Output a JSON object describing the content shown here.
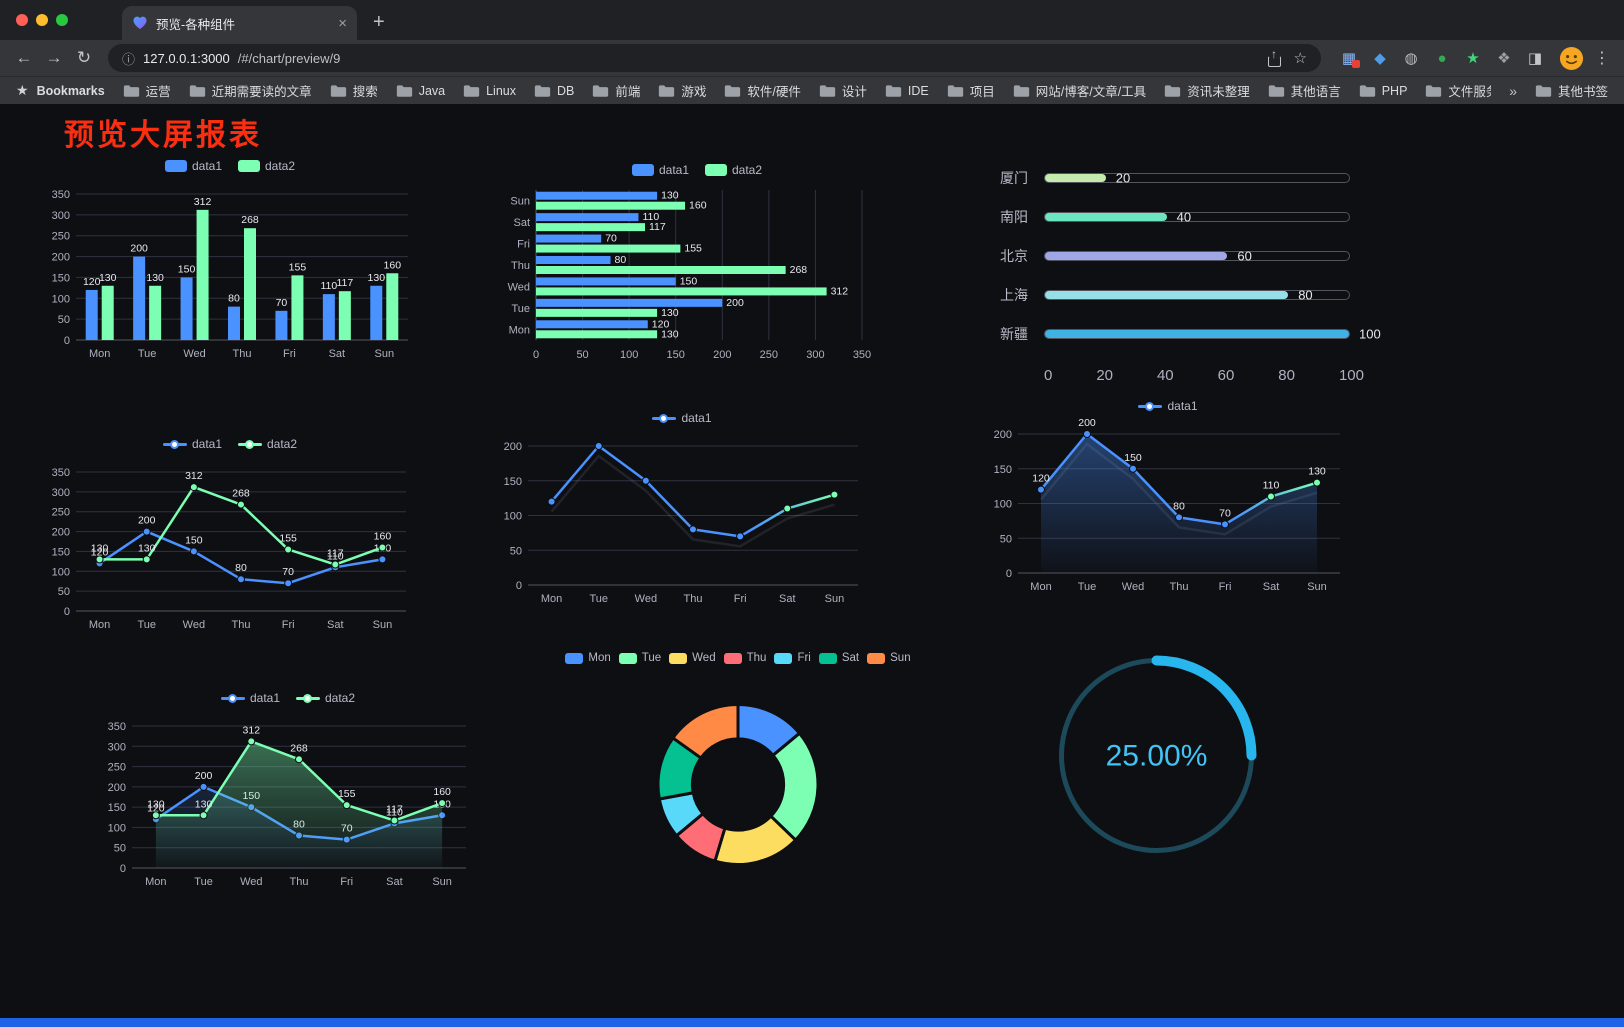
{
  "browser": {
    "tab": {
      "title": "预览-各种组件",
      "close": "×",
      "new_tab": "+"
    },
    "toolbar": {
      "url_host": "127.0.0.1:3000",
      "url_path": "/#/chart/preview/9"
    },
    "extensions": [
      {
        "name": "extension-grid-icon",
        "glyph": "▦",
        "color": "#8ab4f8",
        "badge": "#e94235"
      },
      {
        "name": "extension-pin-icon",
        "glyph": "◆",
        "color": "#4f9bea",
        "badge": ""
      },
      {
        "name": "extension-dark-circle-icon",
        "glyph": "◍",
        "color": "#b8bcc2",
        "badge": ""
      },
      {
        "name": "extension-green-circle-icon",
        "glyph": "●",
        "color": "#34a853",
        "badge": ""
      },
      {
        "name": "extension-green-star-icon",
        "glyph": "★",
        "color": "#41d57c",
        "badge": ""
      },
      {
        "name": "extension-puzzle-icon",
        "glyph": "❖",
        "color": "#9aa0a6",
        "badge": ""
      },
      {
        "name": "extension-split-square-icon",
        "glyph": "◨",
        "color": "#c2c5c9",
        "badge": ""
      }
    ],
    "bookmarks_bar": {
      "star": "★",
      "label": "Bookmarks",
      "items": [
        "运营",
        "近期需要读的文章",
        "搜索",
        "Java",
        "Linux",
        "DB",
        "前端",
        "游戏",
        "软件/硬件",
        "设计",
        "IDE",
        "项目",
        "网站/博客/文章/工具",
        "资讯未整理",
        "其他语言",
        "PHP",
        "文件服务器"
      ],
      "overflow": "»",
      "other": "其他书签"
    }
  },
  "icons": {
    "back": "←",
    "forward": "→",
    "reload": "↻",
    "info": "ⓘ",
    "share_arrow": "↑",
    "star": "☆",
    "menu": "⋮"
  },
  "page": {
    "title": "预览大屏报表"
  },
  "chart_data": [
    {
      "id": "grouped-bar",
      "type": "bar",
      "legend": true,
      "labels": true,
      "categories": [
        "Mon",
        "Tue",
        "Wed",
        "Thu",
        "Fri",
        "Sat",
        "Sun"
      ],
      "series": [
        {
          "name": "data1",
          "color": "#4992ff",
          "values": [
            120,
            200,
            150,
            80,
            70,
            110,
            130
          ]
        },
        {
          "name": "data2",
          "color": "#7cffb2",
          "values": [
            130,
            130,
            312,
            268,
            155,
            117,
            160
          ]
        }
      ],
      "ylim": [
        0,
        350
      ],
      "ytick": 50
    },
    {
      "id": "horizontal-bar",
      "type": "hbar",
      "legend": true,
      "labels": true,
      "categories": [
        "Mon",
        "Tue",
        "Wed",
        "Thu",
        "Fri",
        "Sat",
        "Sun"
      ],
      "series": [
        {
          "name": "data1",
          "color": "#4992ff",
          "values": [
            120,
            200,
            150,
            80,
            70,
            110,
            130
          ]
        },
        {
          "name": "data2",
          "color": "#7cffb2",
          "values": [
            130,
            130,
            312,
            268,
            155,
            117,
            160
          ]
        }
      ],
      "xlim": [
        0,
        350
      ],
      "xtick": 50
    },
    {
      "id": "city-progress",
      "type": "progress",
      "rows": [
        {
          "label": "厦门",
          "value": 20,
          "color": "#c4ebad"
        },
        {
          "label": "南阳",
          "value": 40,
          "color": "#6be6c1"
        },
        {
          "label": "北京",
          "value": 60,
          "color": "#a0a7e6"
        },
        {
          "label": "上海",
          "value": 80,
          "color": "#96dee8"
        },
        {
          "label": "新疆",
          "value": 100,
          "color": "#3fb1e3"
        }
      ],
      "xlim": [
        0,
        100
      ],
      "xticks": [
        0,
        20,
        40,
        60,
        80,
        100
      ]
    },
    {
      "id": "line-two",
      "type": "line",
      "legend": true,
      "labels": true,
      "shadow": false,
      "categories": [
        "Mon",
        "Tue",
        "Wed",
        "Thu",
        "Fri",
        "Sat",
        "Sun"
      ],
      "series": [
        {
          "name": "data1",
          "color": "#4992ff",
          "values": [
            120,
            200,
            150,
            80,
            70,
            110,
            130
          ]
        },
        {
          "name": "data2",
          "color": "#7cffb2",
          "values": [
            130,
            130,
            312,
            268,
            155,
            117,
            160
          ]
        }
      ],
      "ylim": [
        0,
        350
      ],
      "ytick": 50
    },
    {
      "id": "line-gradient",
      "type": "line",
      "legend": true,
      "labels": false,
      "shadow": true,
      "categories": [
        "Mon",
        "Tue",
        "Wed",
        "Thu",
        "Fri",
        "Sat",
        "Sun"
      ],
      "series": [
        {
          "name": "data1",
          "color": "#4992ff",
          "color_end": "#7cffb2",
          "values": [
            120,
            200,
            150,
            80,
            70,
            110,
            130
          ]
        }
      ],
      "ylim": [
        0,
        200
      ],
      "ytick": 50
    },
    {
      "id": "line-area",
      "type": "line",
      "legend": true,
      "labels": true,
      "shadow": true,
      "categories": [
        "Mon",
        "Tue",
        "Wed",
        "Thu",
        "Fri",
        "Sat",
        "Sun"
      ],
      "series": [
        {
          "name": "data1",
          "color": "#4992ff",
          "color_end": "#7cffb2",
          "area": true,
          "area_opacity": 0.4,
          "values": [
            120,
            200,
            150,
            80,
            70,
            110,
            130
          ]
        }
      ],
      "ylim": [
        0,
        200
      ],
      "ytick": 50
    },
    {
      "id": "line-two-area",
      "type": "line",
      "legend": true,
      "labels": true,
      "shadow": false,
      "categories": [
        "Mon",
        "Tue",
        "Wed",
        "Thu",
        "Fri",
        "Sat",
        "Sun"
      ],
      "series": [
        {
          "name": "data1",
          "color": "#4992ff",
          "area": true,
          "area_opacity": 0.16,
          "values": [
            120,
            200,
            150,
            80,
            70,
            110,
            130
          ]
        },
        {
          "name": "data2",
          "color": "#7cffb2",
          "area": true,
          "area_opacity": 0.4,
          "values": [
            130,
            130,
            312,
            268,
            155,
            117,
            160
          ]
        }
      ],
      "ylim": [
        0,
        350
      ],
      "ytick": 50
    },
    {
      "id": "donut",
      "type": "pie",
      "legend": true,
      "inner_radius": 0.57,
      "items": [
        {
          "name": "Mon",
          "value": 120,
          "color": "#4992ff"
        },
        {
          "name": "Tue",
          "value": 200,
          "color": "#7cffb2"
        },
        {
          "name": "Wed",
          "value": 150,
          "color": "#fddd60"
        },
        {
          "name": "Thu",
          "value": 80,
          "color": "#ff6e76"
        },
        {
          "name": "Fri",
          "value": 70,
          "color": "#58d9f9"
        },
        {
          "name": "Sat",
          "value": 110,
          "color": "#05c091"
        },
        {
          "name": "Sun",
          "value": 130,
          "color": "#ff8a45"
        }
      ]
    },
    {
      "id": "gauge",
      "type": "gauge",
      "value": 25,
      "label": "25.00%",
      "color": "#27b6ee",
      "track_color": "#1c4a5a",
      "text_color": "#41c4f5"
    }
  ]
}
